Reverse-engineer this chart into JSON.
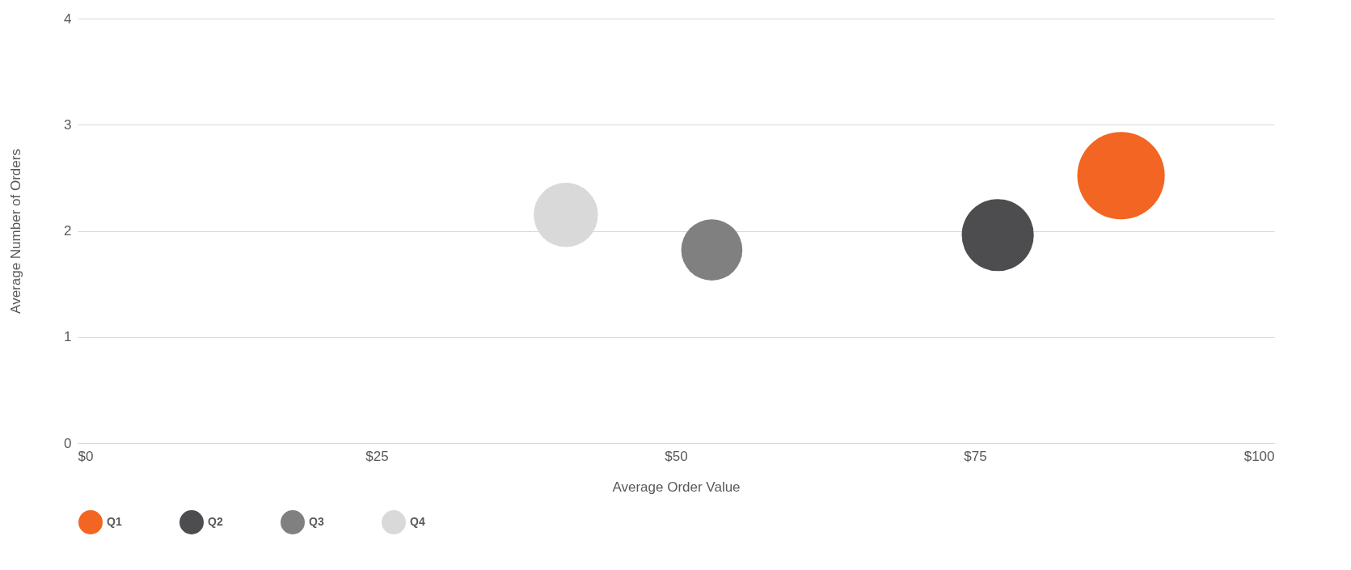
{
  "chart_data": {
    "type": "bubble",
    "xlabel": "Average Order Value",
    "ylabel": "Average Number of Orders",
    "series": [
      {
        "name": "Q1",
        "color": "#f26522",
        "x": [
          87.2
        ],
        "values": [
          2.52
        ],
        "sizes": [
          1
        ]
      },
      {
        "name": "Q2",
        "color": "#4d4d4f",
        "x": [
          76.9
        ],
        "values": [
          1.96
        ],
        "sizes": [
          0.68
        ]
      },
      {
        "name": "Q3",
        "color": "#808080",
        "x": [
          53.0
        ],
        "values": [
          1.82
        ],
        "sizes": [
          0.49
        ]
      },
      {
        "name": "Q4",
        "color": "#d9d9d9",
        "x": [
          40.8
        ],
        "values": [
          2.15
        ],
        "sizes": [
          0.54
        ]
      }
    ],
    "xlim": [
      0,
      100
    ],
    "xticks": [
      {
        "value": 0,
        "label": "$0"
      },
      {
        "value": 25,
        "label": "$25"
      },
      {
        "value": 50,
        "label": "$50"
      },
      {
        "value": 75,
        "label": "$75"
      },
      {
        "value": 100,
        "label": "$100"
      }
    ],
    "ylim": [
      0,
      4
    ],
    "yticks": [
      0,
      1,
      2,
      3,
      4
    ],
    "grid": "y",
    "legend": "bottom"
  }
}
